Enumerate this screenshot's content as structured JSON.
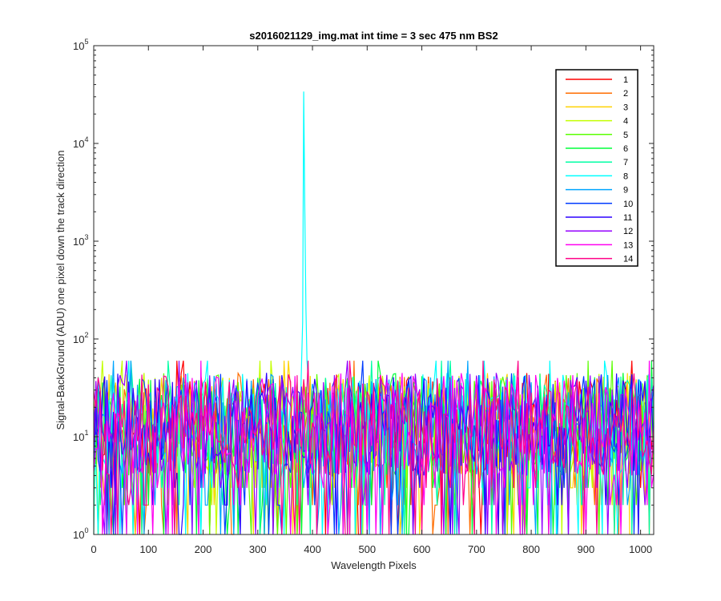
{
  "chart_data": {
    "type": "line",
    "title": "s2016021129_img.mat int time = 3 sec  475 nm BS2",
    "xlabel": "Wavelength Pixels",
    "ylabel": "Signal-BackGround (ADU) one pixel down the track direction",
    "xlim": [
      0,
      1024
    ],
    "ylim": [
      1,
      100000
    ],
    "yscale": "log",
    "grid": false,
    "legend_position": "top-right",
    "x_ticks": [
      0,
      100,
      200,
      300,
      400,
      500,
      600,
      700,
      800,
      900,
      1000
    ],
    "y_ticks": [
      {
        "base": "10",
        "exp": "0",
        "value": 1
      },
      {
        "base": "10",
        "exp": "1",
        "value": 10
      },
      {
        "base": "10",
        "exp": "2",
        "value": 100
      },
      {
        "base": "10",
        "exp": "3",
        "value": 1000
      },
      {
        "base": "10",
        "exp": "4",
        "value": 10000
      },
      {
        "base": "10",
        "exp": "5",
        "value": 100000
      }
    ],
    "noise_description_range": [
      1,
      60
    ],
    "peak": {
      "series": "8",
      "x": [
        378,
        382,
        384,
        386,
        388,
        390,
        392
      ],
      "y": [
        20,
        150,
        34000,
        2000,
        200,
        60,
        40
      ]
    },
    "series": [
      {
        "name": "1",
        "color": "#ff0000"
      },
      {
        "name": "2",
        "color": "#ff6d00"
      },
      {
        "name": "3",
        "color": "#ffd200"
      },
      {
        "name": "4",
        "color": "#c3ff00"
      },
      {
        "name": "5",
        "color": "#5aff00"
      },
      {
        "name": "6",
        "color": "#00ff3c"
      },
      {
        "name": "7",
        "color": "#00ffa5"
      },
      {
        "name": "8",
        "color": "#00ffff"
      },
      {
        "name": "9",
        "color": "#00a5ff"
      },
      {
        "name": "10",
        "color": "#003cff"
      },
      {
        "name": "11",
        "color": "#2d00ff"
      },
      {
        "name": "12",
        "color": "#9600ff"
      },
      {
        "name": "13",
        "color": "#ff00f0"
      },
      {
        "name": "14",
        "color": "#ff0087"
      }
    ]
  }
}
